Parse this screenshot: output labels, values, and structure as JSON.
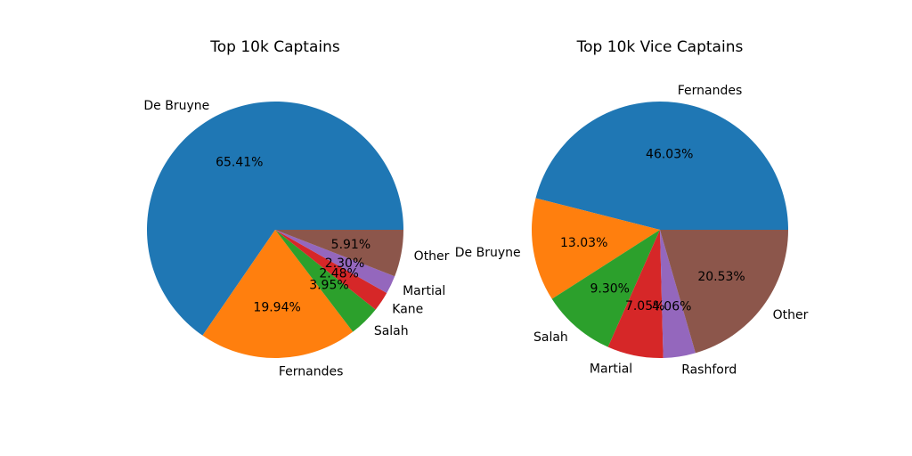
{
  "chart_data": [
    {
      "type": "pie",
      "title": "Top 10k Captains",
      "categories": [
        "De Bruyne",
        "Fernandes",
        "Salah",
        "Kane",
        "Martial",
        "Other"
      ],
      "values": [
        65.41,
        19.94,
        3.95,
        2.48,
        2.3,
        5.91
      ],
      "value_labels": [
        "65.41%",
        "19.94%",
        "3.95%",
        "2.48%",
        "2.30%",
        "5.91%"
      ],
      "colors": [
        "#1f77b4",
        "#ff7f0e",
        "#2ca02c",
        "#d62728",
        "#9467bd",
        "#8c564b"
      ]
    },
    {
      "type": "pie",
      "title": "Top 10k Vice Captains",
      "categories": [
        "Fernandes",
        "De Bruyne",
        "Salah",
        "Martial",
        "Rashford",
        "Other"
      ],
      "values": [
        46.03,
        13.03,
        9.3,
        7.05,
        4.06,
        20.53
      ],
      "value_labels": [
        "46.03%",
        "13.03%",
        "9.30%",
        "7.05%",
        "4.06%",
        "20.53%"
      ],
      "colors": [
        "#1f77b4",
        "#ff7f0e",
        "#2ca02c",
        "#d62728",
        "#9467bd",
        "#8c564b"
      ]
    }
  ]
}
